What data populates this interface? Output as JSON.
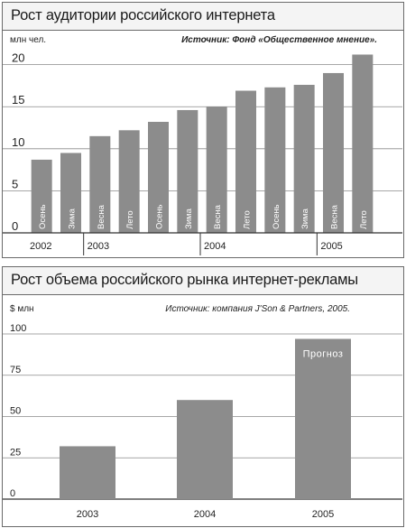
{
  "chart_data": [
    {
      "type": "bar",
      "title": "Рост аудитории российского интернета",
      "ylabel": "млн чел.",
      "source": "Источник: Фонд «Общественное мнение».",
      "ylim": [
        0,
        22
      ],
      "yticks": [
        0,
        5,
        10,
        15,
        20
      ],
      "grid": true,
      "categories": [
        "Осень",
        "Зима",
        "Весна",
        "Лето",
        "Осень",
        "Зима",
        "Весна",
        "Лето",
        "Осень",
        "Зима",
        "Весна",
        "Лето"
      ],
      "values": [
        8.7,
        9.5,
        11.5,
        12.2,
        13.2,
        14.6,
        15.0,
        16.9,
        17.3,
        17.6,
        19.0,
        21.2
      ],
      "years": [
        {
          "label": "2002",
          "start": 0,
          "end": 1
        },
        {
          "label": "2003",
          "start": 2,
          "end": 5
        },
        {
          "label": "2004",
          "start": 6,
          "end": 9
        },
        {
          "label": "2005",
          "start": 10,
          "end": 11
        }
      ],
      "bar_color": "#8c8c8c"
    },
    {
      "type": "bar",
      "title": "Рост объема российского рынка интернет-рекламы",
      "ylabel": "$ млн",
      "source": "Источник: компания J'Son & Partners, 2005.",
      "ylim": [
        0,
        100
      ],
      "yticks": [
        0,
        25,
        50,
        75,
        100
      ],
      "grid": true,
      "categories": [
        "2003",
        "2004",
        "2005"
      ],
      "values": [
        32,
        60,
        97
      ],
      "annotation": {
        "index": 2,
        "text": "Прогноз"
      },
      "bar_color": "#8c8c8c"
    }
  ]
}
